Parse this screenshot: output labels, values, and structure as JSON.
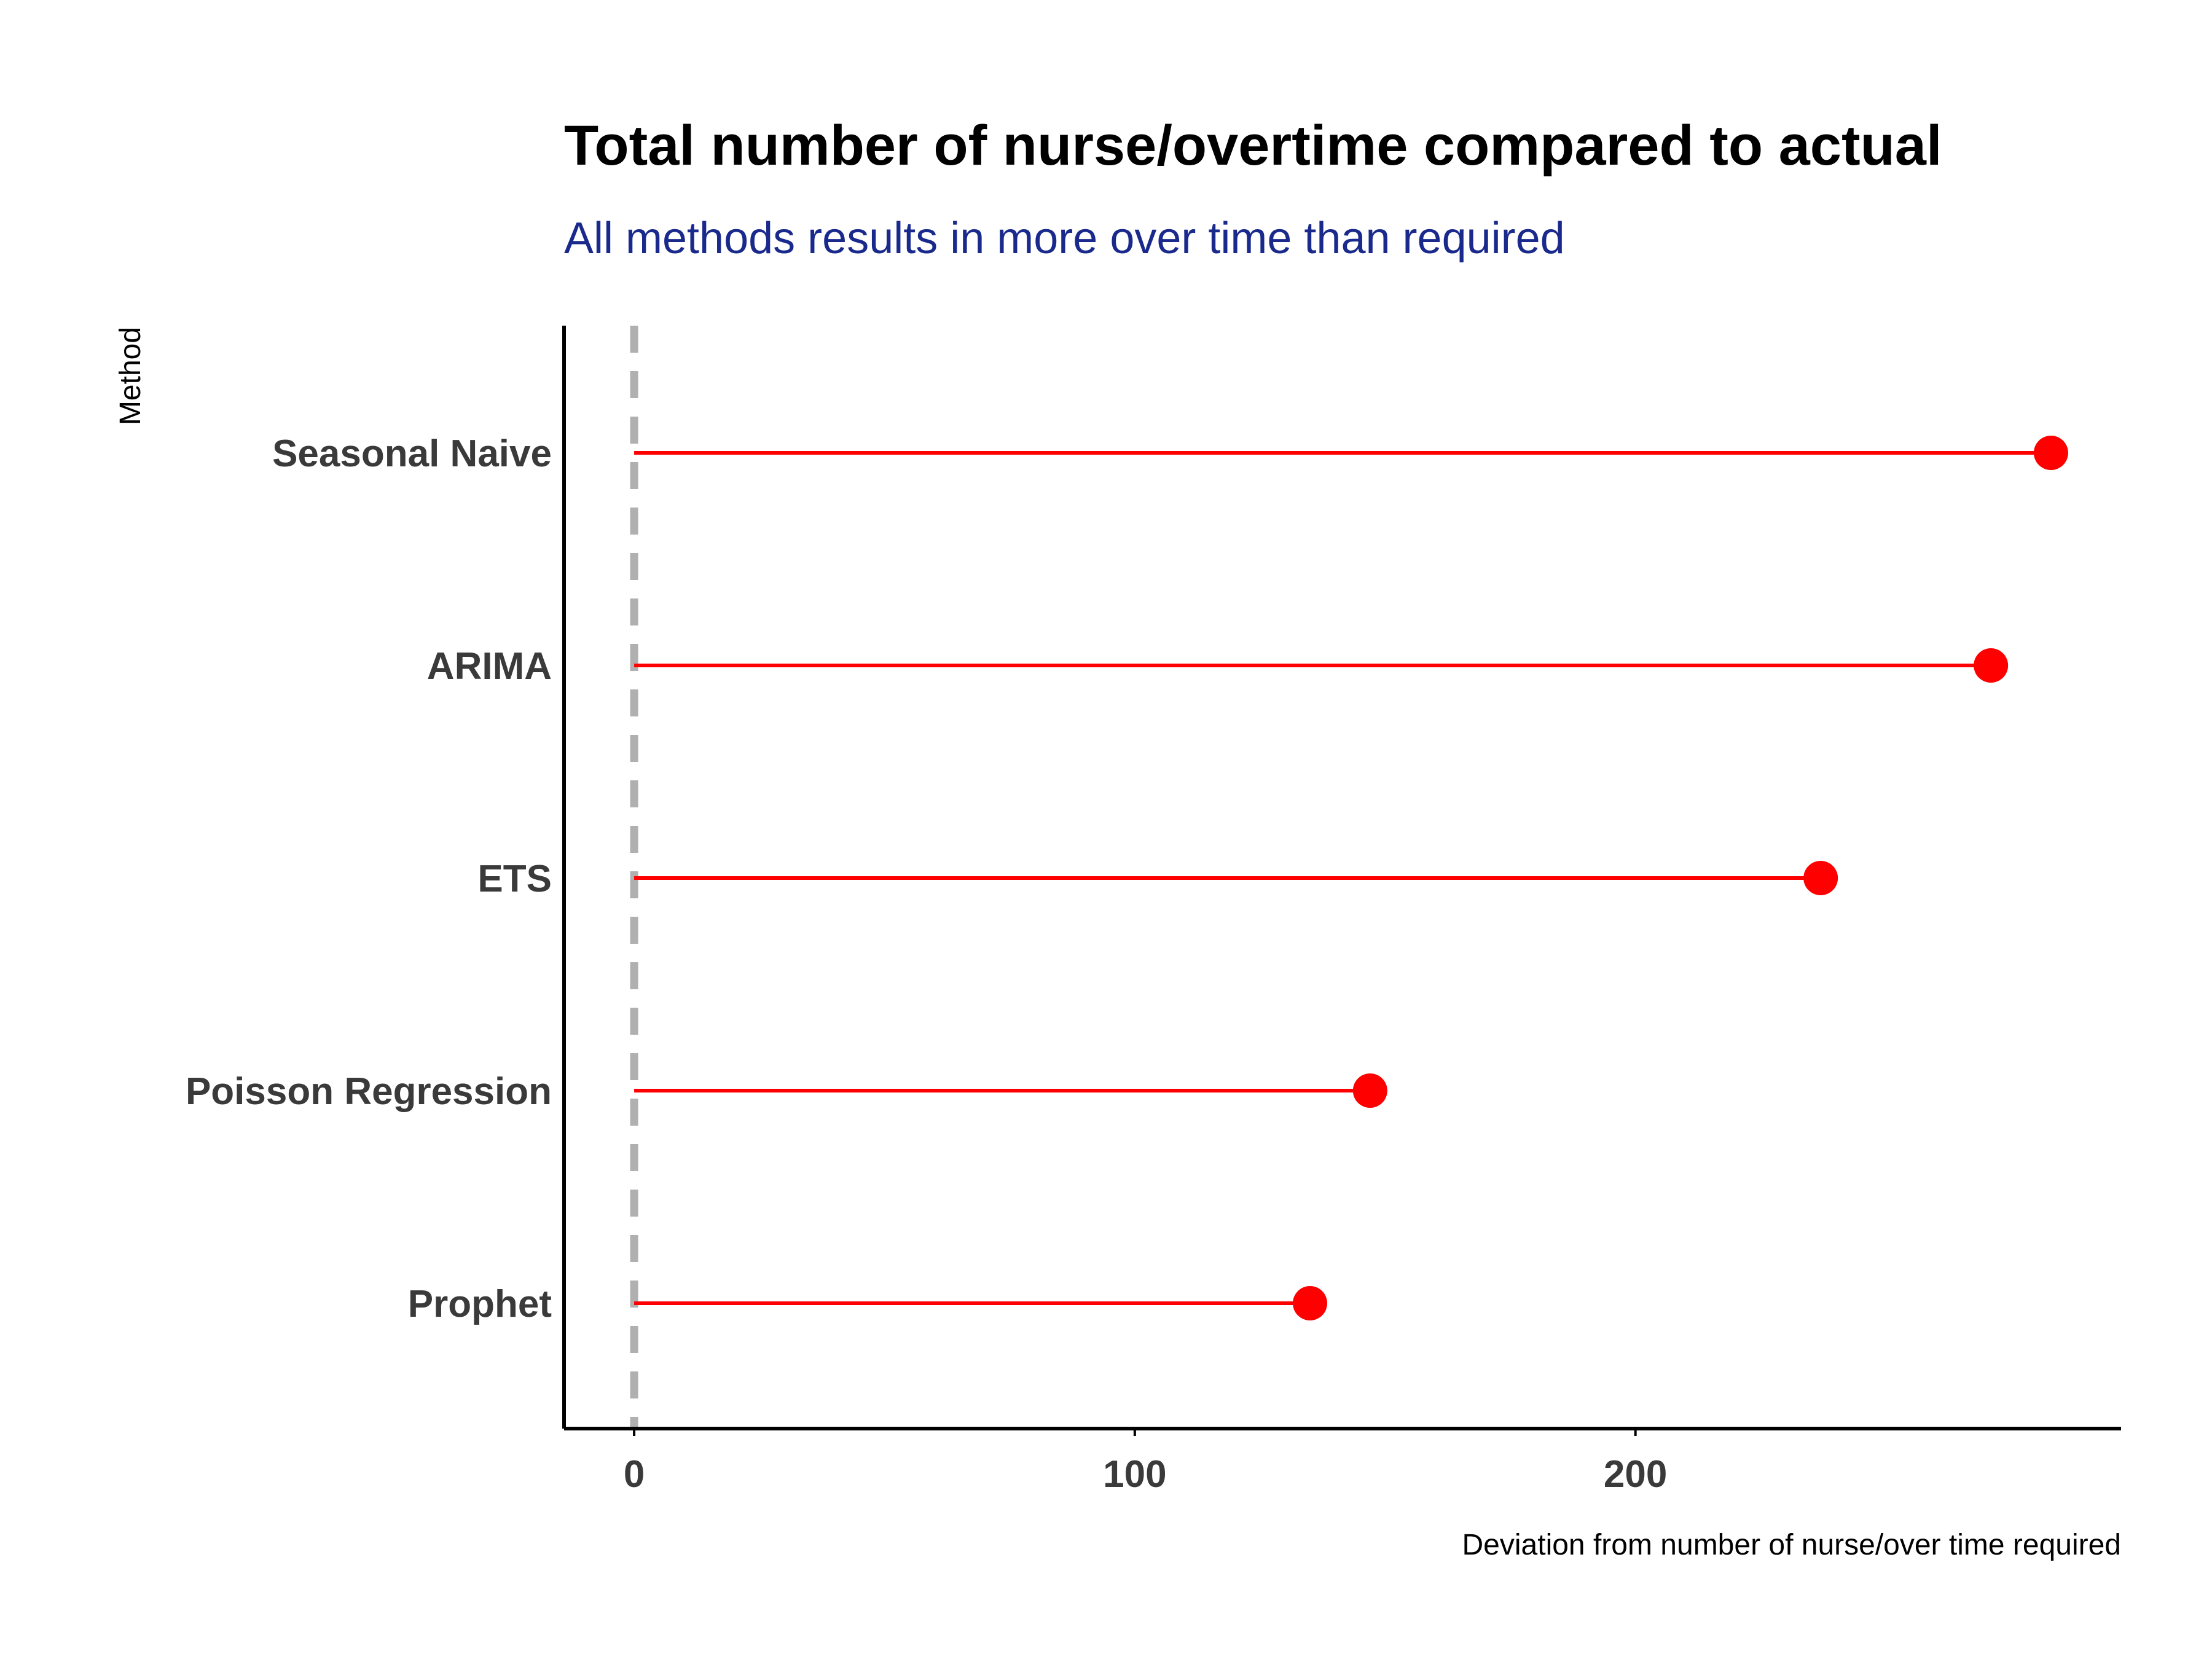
{
  "chart_data": {
    "type": "lollipop",
    "title": "Total number of nurse/overtime compared to actual",
    "subtitle": "All methods results in more over time than required",
    "xlabel": "Deviation from number of nurse/over time required",
    "ylabel": "Method",
    "categories": [
      "Seasonal Naive",
      "ARIMA",
      "ETS",
      "Poisson Regression",
      "Prophet"
    ],
    "values": [
      283,
      271,
      237,
      147,
      135
    ],
    "xticks": [
      0,
      100,
      200
    ],
    "xlim": [
      -14,
      297
    ],
    "reference_line": {
      "x": 0,
      "style": "dashed",
      "color": "#b0b0b0"
    },
    "grid": false,
    "colors": {
      "lollipop": "#ff0000",
      "title": "#000000",
      "subtitle": "#1a2a8c",
      "labels": "#3a3a3a"
    }
  }
}
